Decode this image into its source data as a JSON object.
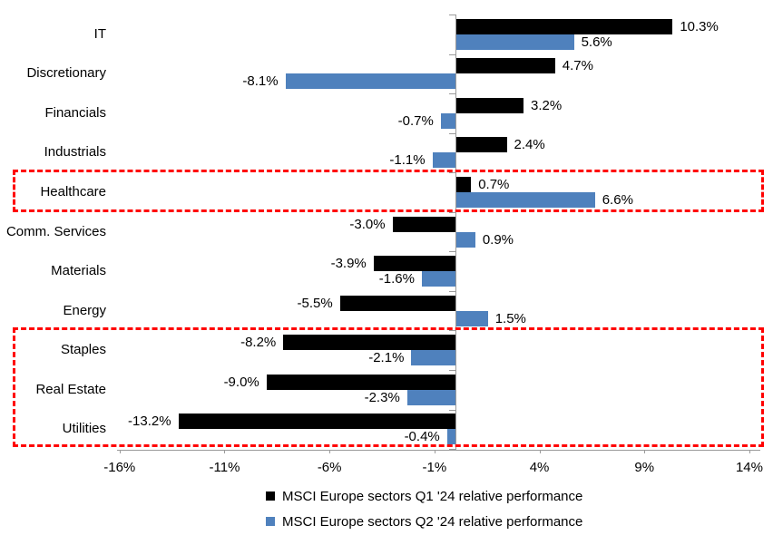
{
  "chart_data": {
    "type": "bar",
    "orientation": "horizontal",
    "title": "",
    "categories": [
      "IT",
      "Discretionary",
      "Financials",
      "Industrials",
      "Healthcare",
      "Comm. Services",
      "Materials",
      "Energy",
      "Staples",
      "Real Estate",
      "Utilities"
    ],
    "series": [
      {
        "name": "MSCI Europe sectors Q1 '24 relative performance",
        "color": "#000000",
        "values": [
          10.3,
          4.7,
          3.2,
          2.4,
          0.7,
          -3.0,
          -3.9,
          -5.5,
          -8.2,
          -9.0,
          -13.2
        ]
      },
      {
        "name": "MSCI Europe sectors Q2 '24 relative performance",
        "color": "#4f81bd",
        "values": [
          5.6,
          -8.1,
          -0.7,
          -1.1,
          6.6,
          0.9,
          -1.6,
          1.5,
          -2.1,
          -2.3,
          -0.4
        ]
      }
    ],
    "value_label_format": "one_decimal_percent",
    "x_ticks": [
      "-16%",
      "-11%",
      "-6%",
      "-1%",
      "4%",
      "9%",
      "14%"
    ],
    "x_tick_values": [
      -16,
      -11,
      -6,
      -1,
      4,
      9,
      14
    ],
    "xlim": [
      -16.1,
      14.5
    ],
    "grid": false,
    "legend_position": "bottom",
    "axis_color": "#9b9b9b",
    "annotations": {
      "highlight_boxes": [
        {
          "from_category": "Healthcare",
          "to_category": "Healthcare"
        },
        {
          "from_category": "Staples",
          "to_category": "Utilities"
        }
      ],
      "color": "#ff0000",
      "style": "dashed"
    }
  }
}
